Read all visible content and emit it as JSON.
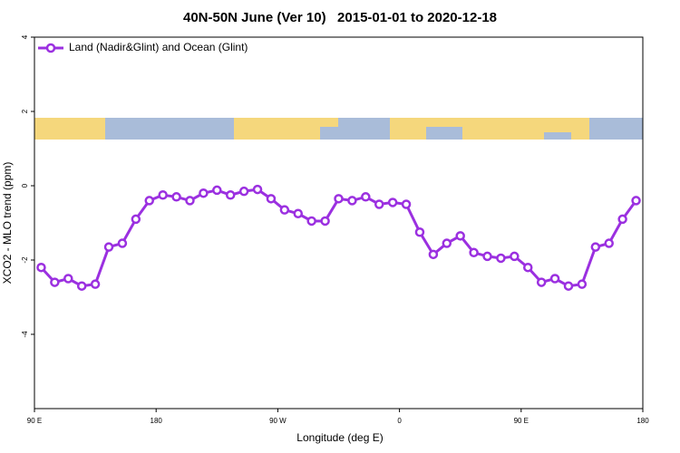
{
  "chart_data": {
    "type": "line",
    "title": "40N-50N June (Ver 10)   2015-01-01 to 2020-12-18",
    "x_label": "Longitude (deg E)",
    "y_label": "XCO2 - MLO trend (ppm)",
    "xlim": [
      90,
      540
    ],
    "xticks": [
      {
        "value": 90,
        "label": "90 E"
      },
      {
        "value": 180,
        "label": "180"
      },
      {
        "value": 270,
        "label": "90 W"
      },
      {
        "value": 360,
        "label": "0"
      },
      {
        "value": 450,
        "label": "90 E"
      },
      {
        "value": 540,
        "label": "180"
      }
    ],
    "ylim": [
      -6,
      4
    ],
    "yticks": [
      -4,
      -2,
      0,
      2,
      4
    ],
    "legend": "top-left",
    "x": [
      95,
      105,
      115,
      125,
      135,
      145,
      155,
      165,
      175,
      185,
      195,
      205,
      215,
      225,
      235,
      245,
      255,
      265,
      275,
      285,
      295,
      305,
      315,
      325,
      335,
      345,
      355,
      365,
      375,
      385,
      395,
      405,
      415,
      425,
      435,
      445,
      455,
      465,
      475,
      485,
      495,
      505,
      515,
      525,
      535
    ],
    "series": [
      {
        "name": "Land (Nadir&Glint) and Ocean (Glint)",
        "color": "#9b30e0",
        "values": [
          -2.2,
          -2.6,
          -2.5,
          -2.7,
          -2.65,
          -1.65,
          -1.55,
          -0.9,
          -0.4,
          -0.25,
          -0.3,
          -0.4,
          -0.2,
          -0.12,
          -0.25,
          -0.15,
          -0.1,
          -0.35,
          -0.65,
          -0.75,
          -0.95,
          -0.95,
          -0.35,
          -0.4,
          -0.3,
          -0.5,
          -0.45,
          -0.5,
          -1.25,
          -1.85,
          -1.55,
          -1.35,
          -1.8,
          -1.9,
          -1.95,
          -1.9,
          -2.2,
          -2.6,
          -2.5,
          -2.7,
          -2.65,
          -1.65,
          -1.55,
          -0.9,
          -0.4
        ]
      }
    ]
  }
}
